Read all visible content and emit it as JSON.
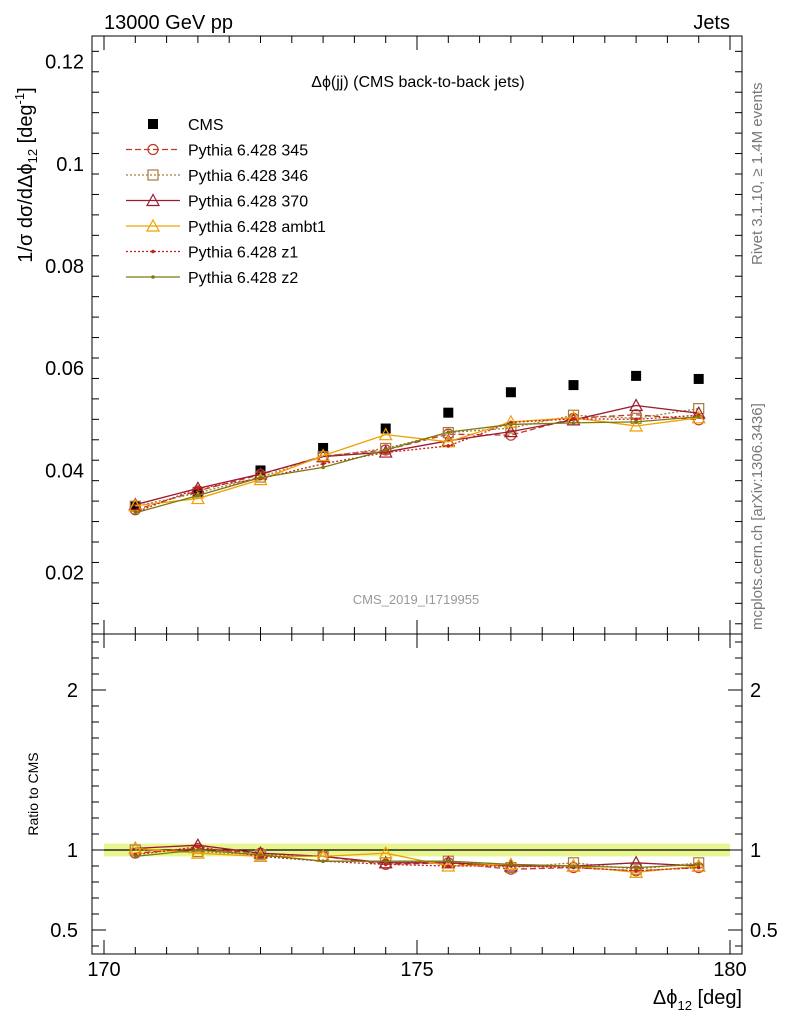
{
  "header": {
    "left": "13000 GeV pp",
    "right": "Jets"
  },
  "side": {
    "top": "Rivet 3.1.10, ≥ 1.4M events",
    "bottom": "mcplots.cern.ch [arXiv:1306.3436]"
  },
  "colors": {
    "CMS": "#000000",
    "p345": "#c0392b",
    "p346": "#a57c3c",
    "p370": "#9b1c31",
    "ambt1": "#f0a000",
    "z1": "#c81e1e",
    "z2": "#7a7a10",
    "band": "#e8f590"
  },
  "chart_data": [
    {
      "type": "line",
      "title": "Δϕ(jj) (CMS back-to-back jets)",
      "watermark": "CMS_2019_I1719955",
      "ylabel": "1/σ dσ/dΔϕ₁₂ [deg⁻¹]",
      "xlim": [
        170,
        180
      ],
      "ylim": [
        0.008,
        0.125
      ],
      "yticks": [
        0.02,
        0.04,
        0.06,
        0.08,
        0.1,
        0.12
      ],
      "x": [
        170.5,
        171.5,
        172.5,
        173.5,
        174.5,
        175.5,
        176.5,
        177.5,
        178.5,
        179.5
      ],
      "legend_position": "top-left",
      "series": [
        {
          "name": "CMS",
          "key": "CMS",
          "marker": "square",
          "values": [
            0.033,
            0.0358,
            0.04,
            0.0444,
            0.0482,
            0.0513,
            0.0553,
            0.0567,
            0.0585,
            0.0579
          ]
        },
        {
          "name": "Pythia 6.428 345",
          "key": "p345",
          "marker": "circle",
          "dash": "6,3",
          "values": [
            0.0323,
            0.036,
            0.0392,
            0.0428,
            0.044,
            0.0471,
            0.0469,
            0.0502,
            0.0509,
            0.0499
          ]
        },
        {
          "name": "Pythia 6.428 346",
          "key": "p346",
          "marker": "square-open",
          "dash": "2,2",
          "values": [
            0.033,
            0.0356,
            0.0387,
            0.0427,
            0.0443,
            0.0474,
            0.0483,
            0.0508,
            0.0502,
            0.0521
          ]
        },
        {
          "name": "Pythia 6.428 370",
          "key": "p370",
          "marker": "triangle",
          "dash": "",
          "values": [
            0.0333,
            0.0365,
            0.0393,
            0.0427,
            0.0436,
            0.0458,
            0.0476,
            0.0499,
            0.0527,
            0.0512
          ]
        },
        {
          "name": "Pythia 6.428 ambt1",
          "key": "ambt1",
          "marker": "triangle",
          "dash": "",
          "values": [
            0.0331,
            0.0345,
            0.0382,
            0.0429,
            0.047,
            0.0456,
            0.0495,
            0.0503,
            0.0487,
            0.0503
          ]
        },
        {
          "name": "Pythia 6.428 z1",
          "key": "z1",
          "marker": "dot",
          "dash": "2,2",
          "values": [
            0.0318,
            0.0365,
            0.0384,
            0.0413,
            0.0435,
            0.0448,
            0.0494,
            0.0501,
            0.05,
            0.0508
          ]
        },
        {
          "name": "Pythia 6.428 z2",
          "key": "z2",
          "marker": "dot",
          "dash": "",
          "values": [
            0.0317,
            0.0351,
            0.0386,
            0.0406,
            0.044,
            0.0475,
            0.049,
            0.0493,
            0.0495,
            0.0505
          ]
        }
      ]
    },
    {
      "type": "line",
      "ylabel": "Ratio to CMS",
      "xlabel": "Δϕ₁₂ [deg]",
      "xlim": [
        170,
        180
      ],
      "ylim": [
        0.35,
        2.35
      ],
      "yticks": [
        0.5,
        1,
        2
      ],
      "xticks": [
        170,
        175,
        180
      ],
      "x": [
        170.5,
        171.5,
        172.5,
        173.5,
        174.5,
        175.5,
        176.5,
        177.5,
        178.5,
        179.5
      ],
      "series": [
        {
          "name": "Pythia 6.428 345",
          "key": "p345",
          "marker": "circle",
          "dash": "6,3",
          "values": [
            0.98,
            1.01,
            0.98,
            0.96,
            0.91,
            0.92,
            0.88,
            0.89,
            0.87,
            0.89
          ]
        },
        {
          "name": "Pythia 6.428 346",
          "key": "p346",
          "marker": "square-open",
          "dash": "2,2",
          "values": [
            1.0,
            0.99,
            0.97,
            0.96,
            0.92,
            0.93,
            0.89,
            0.92,
            0.88,
            0.92
          ]
        },
        {
          "name": "Pythia 6.428 370",
          "key": "p370",
          "marker": "triangle",
          "dash": "",
          "values": [
            1.01,
            1.03,
            0.98,
            0.96,
            0.92,
            0.92,
            0.9,
            0.9,
            0.92,
            0.9
          ]
        },
        {
          "name": "Pythia 6.428 ambt1",
          "key": "ambt1",
          "marker": "triangle",
          "dash": "",
          "values": [
            1.01,
            0.98,
            0.96,
            0.96,
            0.98,
            0.9,
            0.91,
            0.9,
            0.86,
            0.9
          ]
        },
        {
          "name": "Pythia 6.428 z1",
          "key": "z1",
          "marker": "dot",
          "dash": "2,2",
          "values": [
            0.97,
            1.02,
            0.96,
            0.93,
            0.91,
            0.9,
            0.9,
            0.89,
            0.87,
            0.89
          ]
        },
        {
          "name": "Pythia 6.428 z2",
          "key": "z2",
          "marker": "dot",
          "dash": "",
          "values": [
            0.96,
            1.0,
            0.97,
            0.93,
            0.93,
            0.93,
            0.91,
            0.9,
            0.89,
            0.91
          ]
        }
      ]
    }
  ]
}
